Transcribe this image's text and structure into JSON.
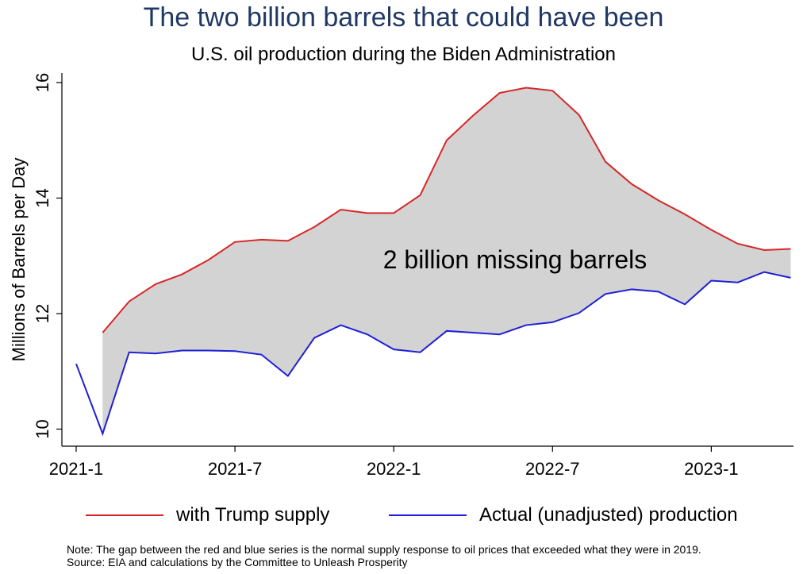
{
  "title": "The two billion barrels that could have been",
  "subtitle": "U.S. oil production during the Biden Administration",
  "chart_data": {
    "type": "area",
    "x": [
      "2021-1",
      "2021-2",
      "2021-3",
      "2021-4",
      "2021-5",
      "2021-6",
      "2021-7",
      "2021-8",
      "2021-9",
      "2021-10",
      "2021-11",
      "2021-12",
      "2022-1",
      "2022-2",
      "2022-3",
      "2022-4",
      "2022-5",
      "2022-6",
      "2022-7",
      "2022-8",
      "2022-9",
      "2022-10",
      "2022-11",
      "2022-12",
      "2023-1",
      "2023-2",
      "2023-3",
      "2023-4"
    ],
    "series": [
      {
        "name": "with Trump supply",
        "color": "#d62728",
        "start_index": 1,
        "values": [
          null,
          11.67,
          12.21,
          12.51,
          12.68,
          12.93,
          13.24,
          13.28,
          13.26,
          13.5,
          13.8,
          13.74,
          13.74,
          14.05,
          15.0,
          15.43,
          15.82,
          15.91,
          15.86,
          15.44,
          14.63,
          14.24,
          13.96,
          13.72,
          13.45,
          13.21,
          13.1,
          13.12
        ]
      },
      {
        "name": "Actual (unadjusted) production",
        "color": "#1f1fd6",
        "values": [
          11.13,
          9.92,
          11.33,
          11.31,
          11.36,
          11.36,
          11.35,
          11.29,
          10.92,
          11.58,
          11.8,
          11.64,
          11.38,
          11.33,
          11.7,
          11.67,
          11.64,
          11.8,
          11.85,
          12.01,
          12.34,
          12.42,
          12.38,
          12.16,
          12.57,
          12.54,
          12.72,
          12.62
        ]
      }
    ],
    "fill_color": "#d3d3d3",
    "ylabel": "Millions of Barrels per Day",
    "xlabel": "",
    "yticks": [
      10,
      12,
      14,
      16
    ],
    "xticks": [
      "2021-1",
      "2021-7",
      "2022-1",
      "2022-7",
      "2023-1"
    ],
    "ylim": [
      9.8,
      16.1
    ],
    "annotation": "2 billion missing barrels",
    "legend": [
      "with Trump supply",
      "Actual (unadjusted) production"
    ],
    "legend_position": "bottom",
    "grid": false
  },
  "note_line1": "Note: The gap between the red and blue series is the normal supply response to oil prices that exceeded what they were in 2019.",
  "note_line2": "Source: EIA and calculations by the Committee to Unleash Prosperity"
}
